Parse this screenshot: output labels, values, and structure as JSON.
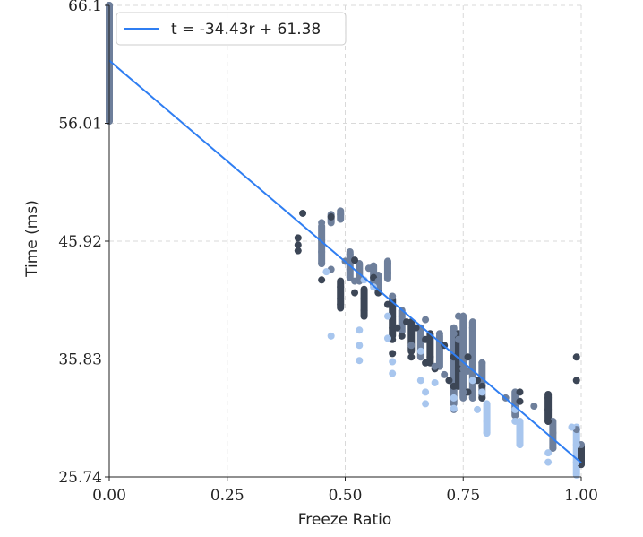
{
  "chart_data": {
    "type": "scatter",
    "title": "",
    "xlabel": "Freeze Ratio",
    "ylabel": "Time (ms)",
    "xlim": [
      0,
      1
    ],
    "ylim": [
      25.74,
      66.1
    ],
    "xticks": [
      0,
      0.25,
      0.5,
      0.75,
      1.0
    ],
    "xtick_labels": [
      "0.00",
      "0.25",
      "0.50",
      "0.75",
      "1.00"
    ],
    "yticks": [
      25.74,
      35.83,
      45.92,
      56.01,
      66.1
    ],
    "ytick_labels": [
      "25.74",
      "35.83",
      "45.92",
      "56.01",
      "66.1"
    ],
    "grid": true,
    "legend": {
      "position": "top-left",
      "entries": [
        "t = -34.43r + 61.38"
      ]
    },
    "fit_line": {
      "label": "t = -34.43r + 61.38",
      "slope": -34.43,
      "intercept": 61.38,
      "color": "#2f7ef2"
    },
    "series": [
      {
        "name": "dark",
        "color": "#3c4656",
        "points": [
          [
            0.4,
            46.2
          ],
          [
            0.4,
            45.6
          ],
          [
            0.4,
            45.1
          ],
          [
            0.41,
            48.3
          ],
          [
            0.45,
            42.6
          ],
          [
            0.47,
            48.0
          ],
          [
            0.49,
            42.0
          ],
          [
            0.49,
            41.0
          ],
          [
            0.49,
            40.5
          ],
          [
            0.52,
            44.3
          ],
          [
            0.52,
            41.5
          ],
          [
            0.54,
            41.0
          ],
          [
            0.54,
            40.0
          ],
          [
            0.54,
            39.5
          ],
          [
            0.56,
            42.8
          ],
          [
            0.57,
            41.5
          ],
          [
            0.59,
            40.5
          ],
          [
            0.6,
            39.5
          ],
          [
            0.6,
            38.5
          ],
          [
            0.6,
            37.5
          ],
          [
            0.6,
            36.3
          ],
          [
            0.61,
            38.5
          ],
          [
            0.62,
            37.8
          ],
          [
            0.63,
            39.0
          ],
          [
            0.64,
            36.0
          ],
          [
            0.65,
            38.5
          ],
          [
            0.67,
            37.5
          ],
          [
            0.67,
            35.5
          ],
          [
            0.68,
            36.0
          ],
          [
            0.69,
            35.0
          ],
          [
            0.71,
            37.0
          ],
          [
            0.72,
            34.0
          ],
          [
            0.73,
            36.0
          ],
          [
            0.73,
            33.5
          ],
          [
            0.74,
            35.0
          ],
          [
            0.76,
            36.0
          ],
          [
            0.76,
            33.0
          ],
          [
            0.78,
            34.0
          ],
          [
            0.79,
            33.5
          ],
          [
            0.79,
            32.5
          ],
          [
            0.87,
            33.0
          ],
          [
            0.87,
            32.2
          ],
          [
            0.93,
            32.5
          ],
          [
            0.93,
            31.5
          ],
          [
            0.93,
            30.5
          ],
          [
            0.99,
            36.0
          ],
          [
            0.99,
            34.0
          ],
          [
            1.0,
            26.8
          ],
          [
            1.0,
            27.5
          ],
          [
            1.0,
            28.2
          ]
        ]
      },
      {
        "name": "medium",
        "color": "#6e7f9b",
        "points": [
          [
            0.0,
            66.1
          ],
          [
            0.0,
            63.0
          ],
          [
            0.0,
            60.0
          ],
          [
            0.0,
            58.0
          ],
          [
            0.0,
            56.2
          ],
          [
            0.45,
            47.5
          ],
          [
            0.45,
            46.0
          ],
          [
            0.45,
            45.0
          ],
          [
            0.45,
            44.0
          ],
          [
            0.47,
            43.5
          ],
          [
            0.49,
            48.2
          ],
          [
            0.5,
            44.2
          ],
          [
            0.51,
            44.8
          ],
          [
            0.51,
            43.5
          ],
          [
            0.52,
            42.5
          ],
          [
            0.55,
            43.6
          ],
          [
            0.57,
            42.5
          ],
          [
            0.59,
            44.0
          ],
          [
            0.59,
            43.2
          ],
          [
            0.6,
            41.2
          ],
          [
            0.62,
            39.5
          ],
          [
            0.64,
            37.0
          ],
          [
            0.66,
            36.5
          ],
          [
            0.67,
            39.2
          ],
          [
            0.69,
            35.2
          ],
          [
            0.7,
            38.0
          ],
          [
            0.71,
            34.5
          ],
          [
            0.73,
            38.0
          ],
          [
            0.73,
            31.5
          ],
          [
            0.74,
            39.5
          ],
          [
            0.74,
            37.5
          ],
          [
            0.75,
            35.0
          ],
          [
            0.75,
            33.0
          ],
          [
            0.76,
            34.8
          ],
          [
            0.77,
            38.5
          ],
          [
            0.77,
            32.5
          ],
          [
            0.79,
            35.5
          ],
          [
            0.84,
            32.5
          ],
          [
            0.86,
            31.5
          ],
          [
            0.9,
            31.8
          ],
          [
            0.94,
            29.5
          ],
          [
            0.94,
            28.2
          ],
          [
            0.99,
            29.8
          ],
          [
            1.0,
            28.5
          ]
        ]
      },
      {
        "name": "light",
        "color": "#a8c6ee",
        "points": [
          [
            0.46,
            43.3
          ],
          [
            0.47,
            37.8
          ],
          [
            0.53,
            38.3
          ],
          [
            0.53,
            37.0
          ],
          [
            0.53,
            35.7
          ],
          [
            0.54,
            42.6
          ],
          [
            0.56,
            42.0
          ],
          [
            0.59,
            39.5
          ],
          [
            0.59,
            37.6
          ],
          [
            0.6,
            35.6
          ],
          [
            0.6,
            34.6
          ],
          [
            0.66,
            36.5
          ],
          [
            0.66,
            34.0
          ],
          [
            0.67,
            33.0
          ],
          [
            0.67,
            32.0
          ],
          [
            0.69,
            33.8
          ],
          [
            0.73,
            32.5
          ],
          [
            0.73,
            31.6
          ],
          [
            0.77,
            34.0
          ],
          [
            0.78,
            31.5
          ],
          [
            0.79,
            33.0
          ],
          [
            0.8,
            30.5
          ],
          [
            0.8,
            29.5
          ],
          [
            0.86,
            31.5
          ],
          [
            0.86,
            30.5
          ],
          [
            0.87,
            29.5
          ],
          [
            0.87,
            28.5
          ],
          [
            0.93,
            27.8
          ],
          [
            0.93,
            27.0
          ],
          [
            0.98,
            30.0
          ],
          [
            0.99,
            28.5
          ],
          [
            0.99,
            27.0
          ],
          [
            0.99,
            25.9
          ]
        ]
      }
    ],
    "stacks": [
      {
        "series": "medium",
        "x": 0.0,
        "y0": 56.2,
        "y1": 66.1
      },
      {
        "series": "medium",
        "x": 0.45,
        "y0": 44.0,
        "y1": 47.2
      },
      {
        "series": "medium",
        "x": 0.47,
        "y0": 47.5,
        "y1": 48.2
      },
      {
        "series": "medium",
        "x": 0.49,
        "y0": 47.8,
        "y1": 48.5
      },
      {
        "series": "medium",
        "x": 0.51,
        "y0": 42.8,
        "y1": 45.0
      },
      {
        "series": "medium",
        "x": 0.53,
        "y0": 42.5,
        "y1": 44.0
      },
      {
        "series": "medium",
        "x": 0.56,
        "y0": 42.2,
        "y1": 43.8
      },
      {
        "series": "medium",
        "x": 0.57,
        "y0": 41.5,
        "y1": 43.0
      },
      {
        "series": "medium",
        "x": 0.59,
        "y0": 42.7,
        "y1": 44.2
      },
      {
        "series": "dark",
        "x": 0.49,
        "y0": 40.2,
        "y1": 42.5
      },
      {
        "series": "dark",
        "x": 0.54,
        "y0": 39.5,
        "y1": 41.8
      },
      {
        "series": "dark",
        "x": 0.6,
        "y0": 37.8,
        "y1": 41.0
      },
      {
        "series": "medium",
        "x": 0.62,
        "y0": 38.2,
        "y1": 40.0
      },
      {
        "series": "dark",
        "x": 0.64,
        "y0": 36.5,
        "y1": 39.0
      },
      {
        "series": "medium",
        "x": 0.66,
        "y0": 36.0,
        "y1": 38.5
      },
      {
        "series": "dark",
        "x": 0.68,
        "y0": 35.5,
        "y1": 38.0
      },
      {
        "series": "medium",
        "x": 0.7,
        "y0": 35.2,
        "y1": 37.8
      },
      {
        "series": "medium",
        "x": 0.73,
        "y0": 32.0,
        "y1": 38.5
      },
      {
        "series": "dark",
        "x": 0.74,
        "y0": 33.5,
        "y1": 38.0
      },
      {
        "series": "medium",
        "x": 0.75,
        "y0": 32.5,
        "y1": 39.5
      },
      {
        "series": "medium",
        "x": 0.77,
        "y0": 32.5,
        "y1": 39.0
      },
      {
        "series": "medium",
        "x": 0.79,
        "y0": 32.5,
        "y1": 35.5
      },
      {
        "series": "light",
        "x": 0.8,
        "y0": 29.5,
        "y1": 32.0
      },
      {
        "series": "medium",
        "x": 0.86,
        "y0": 31.0,
        "y1": 33.0
      },
      {
        "series": "light",
        "x": 0.87,
        "y0": 28.5,
        "y1": 30.5
      },
      {
        "series": "dark",
        "x": 0.93,
        "y0": 30.5,
        "y1": 32.8
      },
      {
        "series": "medium",
        "x": 0.94,
        "y0": 28.2,
        "y1": 30.5
      },
      {
        "series": "light",
        "x": 0.99,
        "y0": 26.0,
        "y1": 30.0
      },
      {
        "series": "dark",
        "x": 1.0,
        "y0": 26.8,
        "y1": 28.4
      }
    ]
  }
}
